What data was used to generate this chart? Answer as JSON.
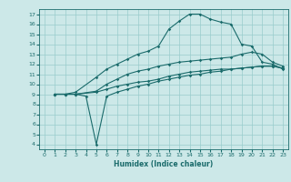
{
  "xlabel": "Humidex (Indice chaleur)",
  "xlim": [
    -0.5,
    23.5
  ],
  "ylim": [
    3.5,
    17.5
  ],
  "xticks": [
    0,
    1,
    2,
    3,
    4,
    5,
    6,
    7,
    8,
    9,
    10,
    11,
    12,
    13,
    14,
    15,
    16,
    17,
    18,
    19,
    20,
    21,
    22,
    23
  ],
  "yticks": [
    4,
    5,
    6,
    7,
    8,
    9,
    10,
    11,
    12,
    13,
    14,
    15,
    16,
    17
  ],
  "bg_color": "#cce8e8",
  "line_color": "#1a6b6b",
  "grid_color": "#99cccc",
  "line1_x": [
    1,
    2,
    3,
    5,
    6,
    7,
    8,
    9,
    10,
    11,
    12,
    13,
    14,
    15,
    16,
    17,
    18,
    19,
    20,
    21,
    22,
    23
  ],
  "line1_y": [
    9.0,
    9.0,
    9.2,
    10.7,
    11.5,
    12.0,
    12.5,
    13.0,
    13.3,
    13.8,
    15.5,
    16.3,
    17.0,
    17.0,
    16.5,
    16.2,
    16.0,
    14.0,
    13.8,
    12.2,
    12.0,
    11.5
  ],
  "line2_x": [
    1,
    2,
    3,
    5,
    6,
    7,
    8,
    9,
    10,
    11,
    12,
    13,
    14,
    15,
    16,
    17,
    18,
    19,
    20,
    21,
    22,
    23
  ],
  "line2_y": [
    9.0,
    9.0,
    9.0,
    9.2,
    9.5,
    9.8,
    10.0,
    10.2,
    10.3,
    10.5,
    10.8,
    11.0,
    11.2,
    11.3,
    11.4,
    11.5,
    11.5,
    11.6,
    11.7,
    11.8,
    11.8,
    11.6
  ],
  "line3_x": [
    1,
    2,
    3,
    5,
    6,
    7,
    8,
    9,
    10,
    11,
    12,
    13,
    14,
    15,
    16,
    17,
    18,
    19,
    20,
    21,
    22,
    23
  ],
  "line3_y": [
    9.0,
    9.0,
    9.0,
    9.3,
    10.0,
    10.5,
    11.0,
    11.3,
    11.5,
    11.8,
    12.0,
    12.2,
    12.3,
    12.4,
    12.5,
    12.6,
    12.7,
    13.0,
    13.2,
    13.0,
    12.2,
    11.8
  ],
  "line4_x": [
    1,
    2,
    3,
    4,
    5,
    6,
    7,
    8,
    9,
    10,
    11,
    12,
    13,
    14,
    15,
    16,
    17,
    18,
    19,
    20,
    21,
    22,
    23
  ],
  "line4_y": [
    9.0,
    9.0,
    9.0,
    8.8,
    4.0,
    8.8,
    9.2,
    9.5,
    9.8,
    10.0,
    10.3,
    10.5,
    10.7,
    10.9,
    11.0,
    11.2,
    11.3,
    11.5,
    11.6,
    11.7,
    11.8,
    11.8,
    11.6
  ]
}
